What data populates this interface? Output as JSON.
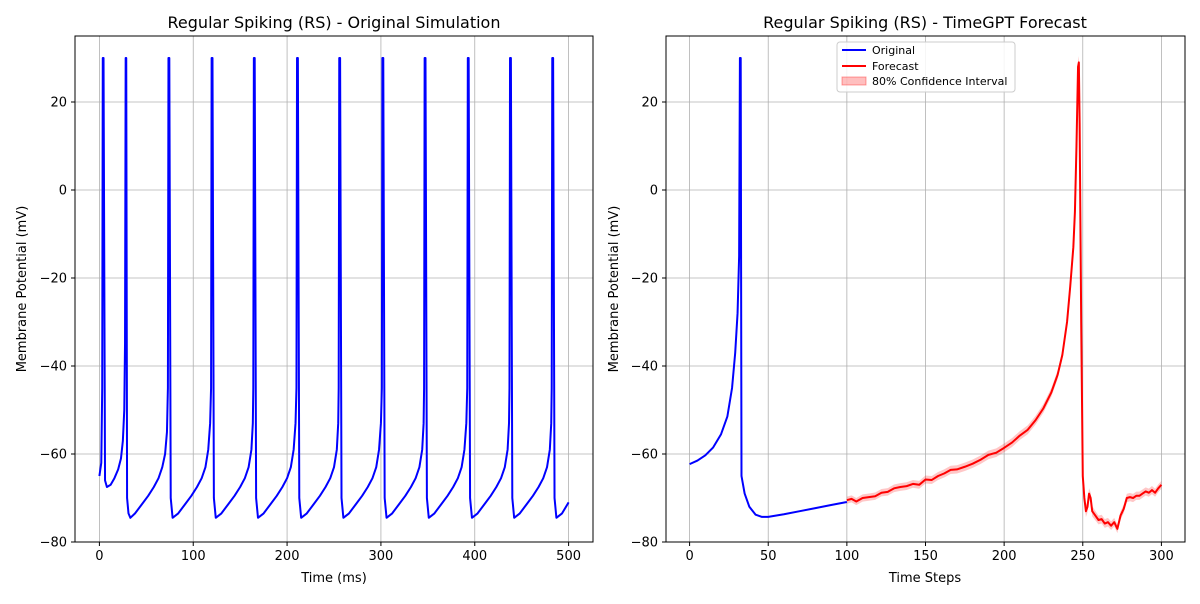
{
  "chart_data": [
    {
      "type": "line",
      "title": "Regular Spiking (RS) - Original Simulation",
      "xlabel": "Time (ms)",
      "ylabel": "Membrane Potential (mV)",
      "xlim": [
        -26,
        526
      ],
      "ylim": [
        -80,
        35
      ],
      "xticks": [
        0,
        100,
        200,
        300,
        400,
        500
      ],
      "yticks": [
        -80,
        -60,
        -40,
        -20,
        0,
        20
      ],
      "grid": true,
      "colors": {
        "original": "#0000ff"
      },
      "series": [
        {
          "spike_times": [
            3,
            28,
            73,
            119,
            164,
            210,
            255,
            301,
            346,
            392,
            437,
            482
          ],
          "x": [
            0,
            2,
            3,
            3.6,
            4.4,
            6,
            8,
            12,
            16,
            20,
            23,
            25,
            26.5,
            27.3,
            28,
            28.6,
            29.5,
            31,
            33,
            38,
            45,
            52,
            58,
            63,
            67,
            70,
            72,
            73,
            73.6,
            74.5,
            76,
            78,
            84,
            91,
            98,
            104,
            109,
            113,
            116,
            118,
            119,
            119.6,
            120.5,
            122,
            124,
            130,
            137,
            144,
            150,
            155,
            159,
            162,
            163.5,
            164,
            164.6,
            165.5,
            167,
            169,
            175,
            182,
            189,
            195,
            200,
            204,
            207,
            209,
            210,
            210.6,
            211.5,
            213,
            215,
            221,
            228,
            235,
            241,
            246,
            250,
            253,
            254.5,
            255,
            255.6,
            256.5,
            258,
            260,
            266,
            273,
            280,
            286,
            291,
            295,
            298,
            300,
            301,
            301.6,
            302.5,
            304,
            306,
            312,
            319,
            326,
            332,
            337,
            341,
            344,
            345.5,
            346,
            346.6,
            347.5,
            349,
            351,
            357,
            364,
            371,
            377,
            382,
            386,
            389,
            391,
            392,
            392.6,
            393.5,
            395,
            397,
            403,
            410,
            417,
            423,
            428,
            432,
            435,
            436.5,
            437,
            437.6,
            438.5,
            440,
            442,
            448,
            455,
            462,
            468,
            473,
            477,
            480,
            481.5,
            482,
            482.6,
            483.5,
            485,
            487,
            493,
            500
          ],
          "y": [
            -65,
            -62,
            -45,
            30,
            30,
            -66,
            -67.5,
            -67,
            -65.5,
            -63.5,
            -61,
            -57,
            -50,
            -35,
            30,
            30,
            -70,
            -73.5,
            -74.5,
            -73.5,
            -71.5,
            -69.5,
            -67.5,
            -65.5,
            -63,
            -60,
            -55,
            -45,
            30,
            30,
            -70,
            -74.5,
            -73.5,
            -71.5,
            -69.5,
            -67.5,
            -65.5,
            -63,
            -59,
            -53,
            -45,
            30,
            30,
            -70,
            -74.5,
            -73.5,
            -71.5,
            -69.5,
            -67.5,
            -65.5,
            -63,
            -59,
            -53,
            -45,
            30,
            30,
            -70,
            -74.5,
            -73.5,
            -71.5,
            -69.5,
            -67.5,
            -65.5,
            -63,
            -59,
            -53,
            -45,
            30,
            30,
            -70,
            -74.5,
            -73.5,
            -71.5,
            -69.5,
            -67.5,
            -65.5,
            -63,
            -59,
            -53,
            -45,
            30,
            30,
            -70,
            -74.5,
            -73.5,
            -71.5,
            -69.5,
            -67.5,
            -65.5,
            -63,
            -59,
            -53,
            -45,
            30,
            30,
            -70,
            -74.5,
            -73.5,
            -71.5,
            -69.5,
            -67.5,
            -65.5,
            -63,
            -59,
            -53,
            -45,
            30,
            30,
            -70,
            -74.5,
            -73.5,
            -71.5,
            -69.5,
            -67.5,
            -65.5,
            -63,
            -59,
            -53,
            -45,
            30,
            30,
            -70,
            -74.5,
            -73.5,
            -71.5,
            -69.5,
            -67.5,
            -65.5,
            -63,
            -59,
            -53,
            -45,
            30,
            30,
            -70,
            -74.5,
            -73.5,
            -71.5,
            -69.5,
            -67.5,
            -65.5,
            -63,
            -59,
            -53,
            -45,
            30,
            30,
            -70,
            -74.5,
            -73.5,
            -71
          ]
        }
      ]
    },
    {
      "type": "line",
      "title": "Regular Spiking (RS) - TimeGPT Forecast",
      "xlabel": "Time Steps",
      "ylabel": "Membrane Potential (mV)",
      "xlim": [
        -15,
        315
      ],
      "ylim": [
        -80,
        35
      ],
      "xticks": [
        0,
        50,
        100,
        150,
        200,
        250,
        300
      ],
      "yticks": [
        -80,
        -60,
        -40,
        -20,
        0,
        20
      ],
      "grid": true,
      "legend": "top-center",
      "colors": {
        "original": "#0000ff",
        "forecast": "#ff0000",
        "interval": "#ff0000"
      },
      "series": [
        {
          "name": "Original",
          "x": [
            0,
            5,
            10,
            15,
            20,
            24,
            27,
            29,
            30.5,
            31.5,
            32,
            32.5,
            33,
            35,
            38,
            42,
            46,
            50,
            60,
            70,
            80,
            90,
            100
          ],
          "y": [
            -62.3,
            -61.5,
            -60.3,
            -58.5,
            -55.5,
            -51.5,
            -45,
            -37,
            -28,
            -15,
            30,
            30,
            -65,
            -69,
            -72,
            -73.8,
            -74.3,
            -74.3,
            -73.7,
            -73,
            -72.3,
            -71.6,
            -70.9
          ]
        },
        {
          "name": "Forecast",
          "x": [
            100,
            103,
            106,
            110,
            114,
            118,
            122,
            126,
            130,
            134,
            138,
            142,
            146,
            150,
            154,
            158,
            162,
            166,
            170,
            175,
            180,
            185,
            190,
            195,
            200,
            205,
            210,
            215,
            220,
            225,
            230,
            234,
            237,
            240,
            242,
            244,
            245,
            246,
            247,
            247.5,
            248,
            249,
            250,
            251,
            252,
            253,
            254,
            255,
            256,
            258,
            260,
            262,
            264,
            266,
            268,
            270,
            272,
            274,
            276,
            278,
            280,
            282,
            284,
            286,
            288,
            290,
            292,
            294,
            296,
            298,
            300
          ],
          "y": [
            -70.5,
            -70.2,
            -70.8,
            -70,
            -69.8,
            -69.6,
            -68.8,
            -68.6,
            -67.8,
            -67.5,
            -67.3,
            -66.8,
            -67,
            -65.8,
            -65.9,
            -65,
            -64.4,
            -63.6,
            -63.5,
            -62.9,
            -62.2,
            -61.3,
            -60.2,
            -59.7,
            -58.6,
            -57.4,
            -55.8,
            -54.5,
            -52.3,
            -49.6,
            -46,
            -42,
            -37.5,
            -30,
            -22,
            -13,
            -5,
            10,
            28,
            29,
            15,
            -30,
            -65,
            -70,
            -73,
            -72,
            -69,
            -70,
            -73,
            -74,
            -75,
            -74.8,
            -75.8,
            -75.5,
            -76.3,
            -75.5,
            -77,
            -74,
            -72.5,
            -70,
            -69.8,
            -70,
            -69.5,
            -69.5,
            -69,
            -68.5,
            -68.8,
            -68.2,
            -68.8,
            -67.8,
            -67
          ]
        },
        {
          "name": "80% Confidence Interval",
          "x": [
            100,
            150,
            200,
            240,
            248,
            260,
            300
          ],
          "halfwidth": [
            0.8,
            0.9,
            1.0,
            1.0,
            1.5,
            1.0,
            0.9
          ]
        }
      ]
    }
  ]
}
